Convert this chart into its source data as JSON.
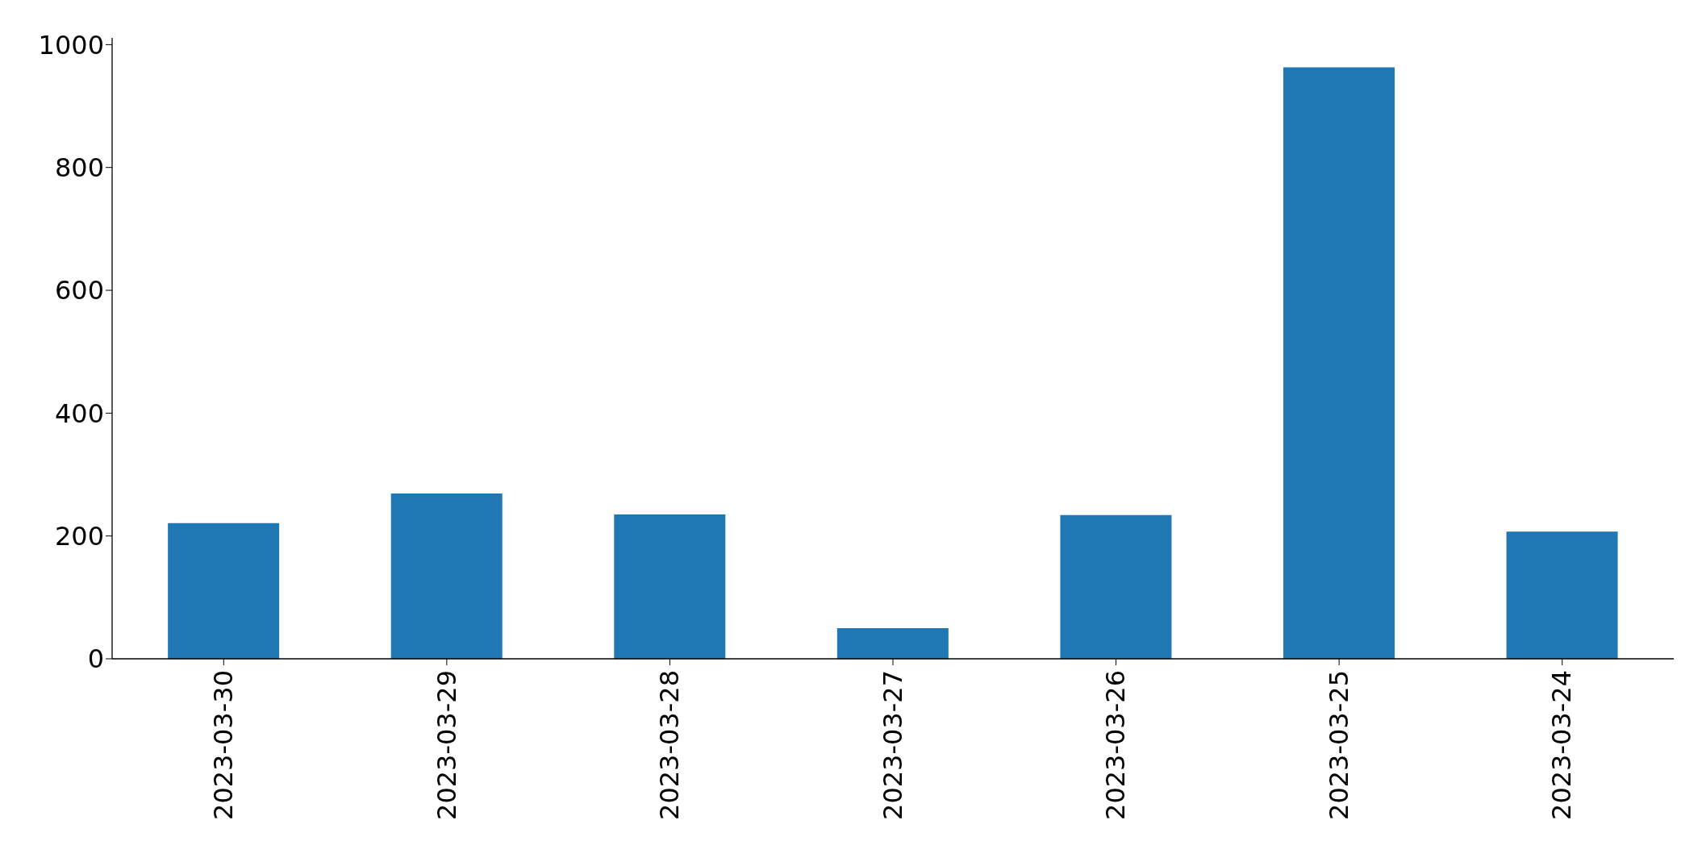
{
  "chart_data": {
    "type": "bar",
    "categories": [
      "2023-03-30",
      "2023-03-29",
      "2023-03-28",
      "2023-03-27",
      "2023-03-26",
      "2023-03-25",
      "2023-03-24"
    ],
    "values": [
      221,
      269,
      235,
      50,
      234,
      963,
      207
    ],
    "color": "#1f77b4",
    "ylim": [
      0,
      1011
    ],
    "yticks": [
      0,
      200,
      400,
      600,
      800,
      1000
    ]
  }
}
